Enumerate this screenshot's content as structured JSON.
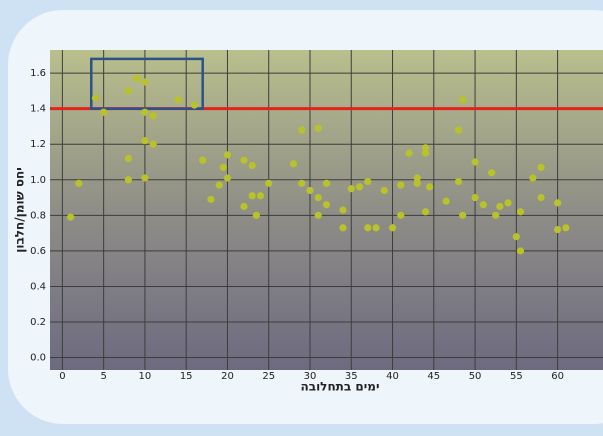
{
  "chart_data": {
    "type": "scatter",
    "x_label": "ימים בתחלובה",
    "y_label": "יחס שומן/חלבון",
    "x": [
      1,
      2,
      4,
      5,
      8,
      9,
      10,
      8,
      8,
      10,
      10,
      11,
      11,
      10,
      14,
      16,
      17,
      18,
      19,
      19.5,
      20,
      20,
      22,
      23,
      22,
      23,
      23.5,
      24,
      25,
      28,
      29,
      31,
      29,
      30,
      31,
      31,
      32,
      32,
      34,
      34,
      35,
      36,
      37,
      37,
      38,
      39,
      40,
      41,
      41,
      42,
      43,
      43,
      44,
      44,
      44,
      44.5,
      46.5,
      48,
      48,
      48.5,
      48.5,
      50,
      50,
      51,
      52,
      52.5,
      53,
      54,
      55,
      55.5,
      55.5,
      57,
      58,
      58,
      60,
      60,
      61
    ],
    "values": [
      0.79,
      0.98,
      1.46,
      1.38,
      1.5,
      1.57,
      1.55,
      1.12,
      1.0,
      1.01,
      1.22,
      1.2,
      1.36,
      1.38,
      1.45,
      1.42,
      1.11,
      0.89,
      0.97,
      1.07,
      1.14,
      1.01,
      1.11,
      1.08,
      0.85,
      0.91,
      0.8,
      0.91,
      0.98,
      1.09,
      1.28,
      1.29,
      0.98,
      0.94,
      0.9,
      0.8,
      0.98,
      0.86,
      0.73,
      0.83,
      0.95,
      0.96,
      0.99,
      0.73,
      0.73,
      0.94,
      0.73,
      0.8,
      0.97,
      1.15,
      0.98,
      1.01,
      1.15,
      1.18,
      0.82,
      0.96,
      0.88,
      1.28,
      0.99,
      1.45,
      0.8,
      1.1,
      0.9,
      0.86,
      1.04,
      0.8,
      0.85,
      0.87,
      0.68,
      0.82,
      0.6,
      1.01,
      1.07,
      0.9,
      0.72,
      0.87,
      0.73
    ],
    "color": "#b9c229",
    "xlim": [
      -1.5,
      65.5
    ],
    "ylim": [
      -0.07,
      1.73
    ],
    "xticks": [
      0,
      5,
      10,
      15,
      20,
      25,
      30,
      35,
      40,
      45,
      50,
      55,
      60
    ],
    "yticks": [
      {
        "value": 0,
        "label": "0.0"
      },
      0.2,
      0.4,
      0.6,
      0.8,
      {
        "value": 1,
        "label": "1.0"
      },
      1.2,
      1.4,
      1.6
    ],
    "grid": true,
    "reference_line": {
      "value": 1.4,
      "color": "#e3221c"
    },
    "highlight": {
      "xlim": [
        3.5,
        17
      ],
      "ylim": [
        1.4,
        1.68
      ],
      "color": "#2d5189"
    }
  }
}
